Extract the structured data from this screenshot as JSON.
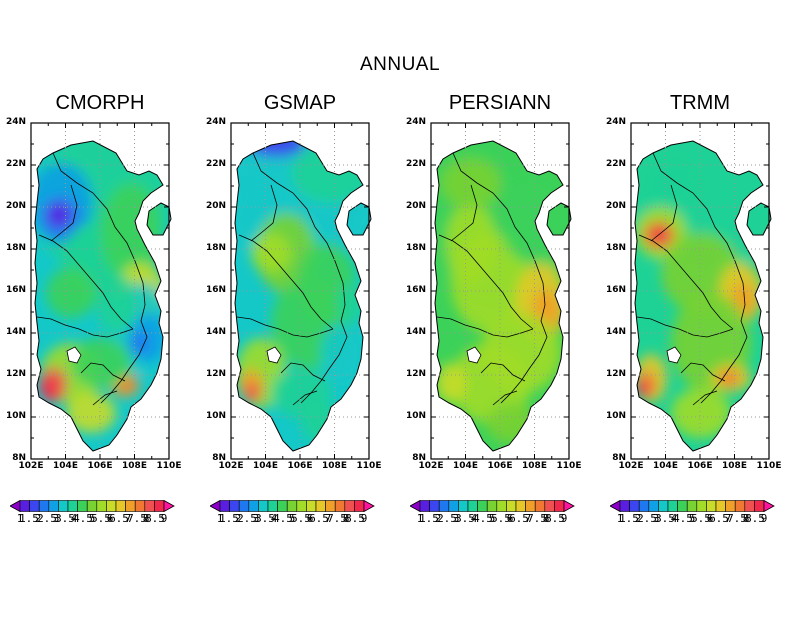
{
  "title": "ANNUAL",
  "panels": [
    {
      "name": "CMORPH"
    },
    {
      "name": "GSMAP"
    },
    {
      "name": "PERSIANN"
    },
    {
      "name": "TRMM"
    }
  ],
  "axes": {
    "y_ticks": [
      "24N",
      "22N",
      "20N",
      "18N",
      "16N",
      "14N",
      "12N",
      "10N",
      "8N"
    ],
    "x_ticks": [
      "102E",
      "104E",
      "106E",
      "108E",
      "110E"
    ]
  },
  "colorbar": {
    "labels": [
      "1",
      "1.5",
      "2",
      "2.5",
      "3",
      "3.5",
      "4",
      "4.5",
      "5",
      "5.5",
      "6",
      "6.5",
      "7",
      "7.5",
      "8",
      "8.5",
      "9"
    ],
    "colors": [
      "#8a00c8",
      "#5a1ee0",
      "#3c46f0",
      "#1e78f0",
      "#10a0e6",
      "#14c8c8",
      "#1ed296",
      "#3cd25a",
      "#78d232",
      "#a0dc28",
      "#c8dc28",
      "#e6c828",
      "#f0a028",
      "#f07832",
      "#f05050",
      "#f0284b",
      "#ff14a0"
    ]
  }
}
